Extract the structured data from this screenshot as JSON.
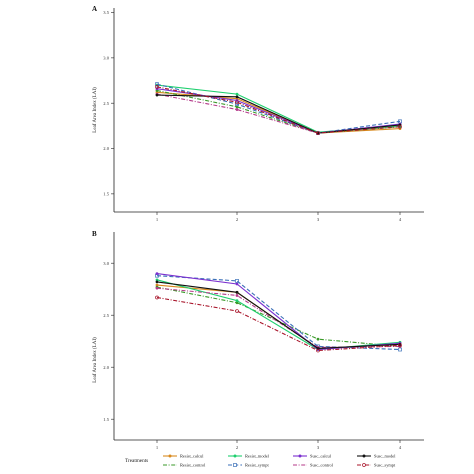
{
  "colors": {
    "Resist_calcul": "#d98a1e",
    "Resist_control": "#3a9a2a",
    "Resist_model": "#1ecf6e",
    "Resist_sympt": "#3a6fb8",
    "Susc_calcul": "#7a2fcf",
    "Susc_control": "#b43a8a",
    "Susc_model": "#111111",
    "Susc_sympt": "#a8142a"
  },
  "legend": {
    "title": "Treatments",
    "items": [
      {
        "name": "Resist_calcul",
        "dash": "solid",
        "marker": "circle",
        "col": 0,
        "row": 0
      },
      {
        "name": "Resist_control",
        "dash": "dashdot",
        "marker": "none",
        "col": 0,
        "row": 1
      },
      {
        "name": "Resist_model",
        "dash": "solid",
        "marker": "circle",
        "col": 1,
        "row": 0
      },
      {
        "name": "Resist_sympt",
        "dash": "dash",
        "marker": "square",
        "col": 1,
        "row": 1
      },
      {
        "name": "Susc_calcul",
        "dash": "solid",
        "marker": "circle",
        "col": 2,
        "row": 0
      },
      {
        "name": "Susc_control",
        "dash": "dashdot",
        "marker": "none",
        "col": 2,
        "row": 1
      },
      {
        "name": "Susc_model",
        "dash": "solid",
        "marker": "circle",
        "col": 3,
        "row": 0
      },
      {
        "name": "Susc_sympt",
        "dash": "dashdot",
        "marker": "circle-open",
        "col": 3,
        "row": 1
      }
    ]
  },
  "chart_data": [
    {
      "type": "line",
      "panel_label": "A",
      "ylabel": "Leaf Area Index (LAI)",
      "x": [
        1,
        2,
        3,
        4
      ],
      "xticks": [
        "1",
        "2",
        "3",
        "4"
      ],
      "ylim": [
        1.3,
        3.55
      ],
      "yticks": [
        "1.5",
        "2.0",
        "2.5",
        "3.0",
        "3.5"
      ],
      "yticks_values": [
        1.5,
        2.0,
        2.5,
        3.0,
        3.5
      ],
      "series": [
        {
          "name": "Resist_calcul",
          "values": [
            2.62,
            2.55,
            2.17,
            2.22
          ]
        },
        {
          "name": "Resist_control",
          "values": [
            2.64,
            2.46,
            2.17,
            2.24
          ]
        },
        {
          "name": "Resist_model",
          "values": [
            2.7,
            2.6,
            2.18,
            2.25
          ]
        },
        {
          "name": "Resist_sympt",
          "values": [
            2.71,
            2.49,
            2.17,
            2.3
          ]
        },
        {
          "name": "Susc_calcul",
          "values": [
            2.66,
            2.53,
            2.17,
            2.27
          ]
        },
        {
          "name": "Susc_control",
          "values": [
            2.6,
            2.43,
            2.17,
            2.26
          ]
        },
        {
          "name": "Susc_model",
          "values": [
            2.59,
            2.57,
            2.17,
            2.26
          ]
        },
        {
          "name": "Susc_sympt",
          "values": [
            2.68,
            2.51,
            2.17,
            2.24
          ]
        }
      ]
    },
    {
      "type": "line",
      "panel_label": "B",
      "ylabel": "Leaf Area Index (LAI)",
      "x": [
        1,
        2,
        3,
        4
      ],
      "xticks": [
        "1",
        "2",
        "3",
        "4"
      ],
      "ylim": [
        1.3,
        3.3
      ],
      "yticks": [
        "1.5",
        "2.0",
        "2.5",
        "3.0"
      ],
      "yticks_values": [
        1.5,
        2.0,
        2.5,
        3.0
      ],
      "series": [
        {
          "name": "Resist_calcul",
          "values": [
            2.79,
            2.72,
            2.18,
            2.22
          ]
        },
        {
          "name": "Resist_control",
          "values": [
            2.77,
            2.62,
            2.27,
            2.2
          ]
        },
        {
          "name": "Resist_model",
          "values": [
            2.84,
            2.64,
            2.17,
            2.24
          ]
        },
        {
          "name": "Resist_sympt",
          "values": [
            2.88,
            2.83,
            2.2,
            2.17
          ]
        },
        {
          "name": "Susc_calcul",
          "values": [
            2.9,
            2.8,
            2.17,
            2.23
          ]
        },
        {
          "name": "Susc_control",
          "values": [
            2.76,
            2.69,
            2.19,
            2.2
          ]
        },
        {
          "name": "Susc_model",
          "values": [
            2.82,
            2.72,
            2.18,
            2.22
          ]
        },
        {
          "name": "Susc_sympt",
          "values": [
            2.67,
            2.54,
            2.16,
            2.21
          ]
        }
      ]
    }
  ]
}
